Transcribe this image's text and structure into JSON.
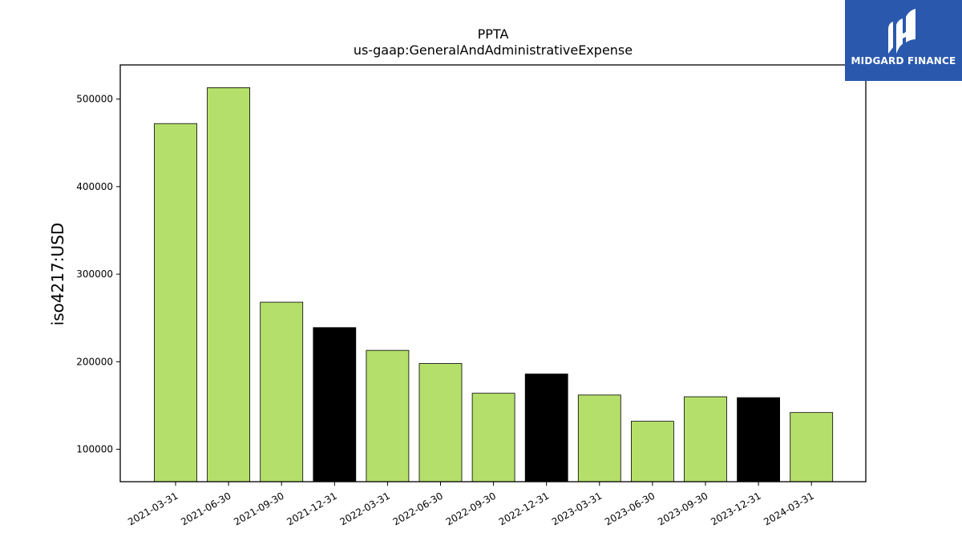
{
  "logo": {
    "text": "MIDGARD FINANCE",
    "color": "#2a58ad"
  },
  "chart_data": {
    "type": "bar",
    "title": "PPTA",
    "subtitle": "us-gaap:GeneralAndAdministrativeExpense",
    "xlabel": "",
    "ylabel": "iso4217:USD",
    "categories": [
      "2021-03-31",
      "2021-06-30",
      "2021-09-30",
      "2021-12-31",
      "2022-03-31",
      "2022-06-30",
      "2022-09-30",
      "2022-12-31",
      "2023-03-31",
      "2023-06-30",
      "2023-09-30",
      "2023-12-31",
      "2024-03-31"
    ],
    "values": [
      472000,
      513000,
      268000,
      239000,
      213000,
      198000,
      164000,
      186000,
      162000,
      132000,
      160000,
      159000,
      142000
    ],
    "bar_colors": [
      "#b5df6b",
      "#b5df6b",
      "#b5df6b",
      "#000000",
      "#b5df6b",
      "#b5df6b",
      "#b5df6b",
      "#000000",
      "#b5df6b",
      "#b5df6b",
      "#b5df6b",
      "#000000",
      "#b5df6b"
    ],
    "yticks": [
      100000,
      200000,
      300000,
      400000,
      500000
    ],
    "ylim": [
      63000,
      539000
    ],
    "grid": false,
    "legend": "none"
  }
}
